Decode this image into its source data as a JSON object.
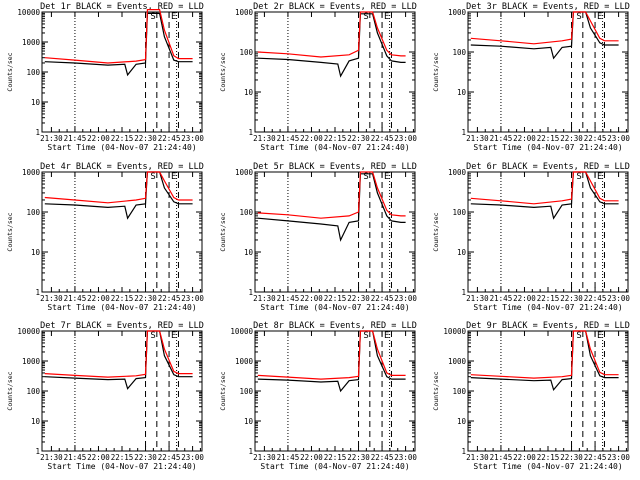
{
  "chart_data": [
    {
      "type": "line",
      "title": "Det 1r BLACK = Events, RED = LLD",
      "xlabel": "Start Time (04-Nov-07 21:24:40)",
      "ylabel": "Counts/sec",
      "ylog": true,
      "ylim": [
        1,
        10000
      ],
      "xlim": [
        21.4,
        23.1
      ],
      "xticks": [
        "21:30",
        "21:45",
        "22:00",
        "22:15",
        "22:30",
        "22:45",
        "23:00"
      ],
      "yticks": [
        "1",
        "10",
        "100",
        "1000",
        "10000"
      ],
      "vlines_dotted": [
        21.75,
        22.83
      ],
      "vlines_dashed": [
        22.5,
        22.62,
        22.75,
        22.85
      ],
      "annotations": [
        "S",
        "E"
      ],
      "series": [
        {
          "color": "#000000",
          "x": [
            21.43,
            21.75,
            22.1,
            22.28,
            22.31,
            22.4,
            22.5,
            22.52,
            22.6,
            22.65,
            22.7,
            22.8,
            22.85,
            22.95,
            23.0
          ],
          "y": [
            220,
            200,
            170,
            180,
            80,
            180,
            200,
            9000,
            9000,
            9000,
            1500,
            250,
            220,
            220,
            220
          ]
        },
        {
          "color": "#ff0000",
          "x": [
            21.43,
            21.75,
            22.1,
            22.4,
            22.5,
            22.52,
            22.6,
            22.65,
            22.7,
            22.8,
            22.85,
            22.95,
            23.0
          ],
          "y": [
            300,
            250,
            200,
            230,
            260,
            12000,
            12000,
            12000,
            2500,
            350,
            280,
            280,
            280
          ]
        }
      ]
    },
    {
      "type": "line",
      "title": "Det 2r BLACK = Events, RED = LLD",
      "xlabel": "Start Time (04-Nov-07 21:24:40)",
      "ylabel": "Counts/sec",
      "ylog": true,
      "ylim": [
        1,
        1000
      ],
      "xlim": [
        21.4,
        23.1
      ],
      "xticks": [
        "21:30",
        "21:45",
        "22:00",
        "22:15",
        "22:30",
        "22:45",
        "23:00"
      ],
      "yticks": [
        "1",
        "10",
        "100",
        "1000"
      ],
      "vlines_dotted": [
        21.75,
        22.83
      ],
      "vlines_dashed": [
        22.5,
        22.62,
        22.75,
        22.85
      ],
      "annotations": [
        "S",
        "E"
      ],
      "series": [
        {
          "color": "#000000",
          "x": [
            21.43,
            21.75,
            22.1,
            22.28,
            22.31,
            22.4,
            22.5,
            22.52,
            22.6,
            22.65,
            22.7,
            22.8,
            22.85,
            22.95,
            23.0
          ],
          "y": [
            70,
            65,
            55,
            50,
            25,
            60,
            70,
            900,
            900,
            900,
            300,
            80,
            60,
            55,
            55
          ]
        },
        {
          "color": "#ff0000",
          "x": [
            21.43,
            21.75,
            22.1,
            22.4,
            22.5,
            22.52,
            22.6,
            22.65,
            22.7,
            22.8,
            22.85,
            22.95,
            23.0
          ],
          "y": [
            100,
            90,
            75,
            85,
            110,
            1000,
            1000,
            1000,
            400,
            110,
            85,
            80,
            80
          ]
        }
      ]
    },
    {
      "type": "line",
      "title": "Det 3r BLACK = Events, RED = LLD",
      "xlabel": "Start Time (04-Nov-07 21:24:40)",
      "ylabel": "Counts/sec",
      "ylog": true,
      "ylim": [
        1,
        1000
      ],
      "xlim": [
        21.4,
        23.1
      ],
      "xticks": [
        "21:30",
        "21:45",
        "22:00",
        "22:15",
        "22:30",
        "22:45",
        "23:00"
      ],
      "yticks": [
        "1",
        "10",
        "100",
        "1000"
      ],
      "vlines_dotted": [
        21.75,
        22.83
      ],
      "vlines_dashed": [
        22.5,
        22.62,
        22.75,
        22.85
      ],
      "annotations": [
        "S",
        "E"
      ],
      "series": [
        {
          "color": "#000000",
          "x": [
            21.43,
            21.75,
            22.1,
            22.28,
            22.31,
            22.4,
            22.5,
            22.52,
            22.6,
            22.65,
            22.7,
            22.8,
            22.85,
            22.95,
            23.0
          ],
          "y": [
            150,
            140,
            120,
            130,
            70,
            130,
            140,
            1000,
            1000,
            1000,
            400,
            170,
            150,
            150,
            150
          ]
        },
        {
          "color": "#ff0000",
          "x": [
            21.43,
            21.75,
            22.1,
            22.4,
            22.5,
            22.52,
            22.6,
            22.65,
            22.7,
            22.8,
            22.85,
            22.95,
            23.0
          ],
          "y": [
            220,
            190,
            160,
            190,
            210,
            1000,
            1000,
            1000,
            600,
            220,
            190,
            190,
            190
          ]
        }
      ]
    },
    {
      "type": "line",
      "title": "Det 4r BLACK = Events, RED = LLD",
      "xlabel": "Start Time (04-Nov-07 21:24:40)",
      "ylabel": "Counts/sec",
      "ylog": true,
      "ylim": [
        1,
        1000
      ],
      "xlim": [
        21.4,
        23.1
      ],
      "xticks": [
        "21:30",
        "21:45",
        "22:00",
        "22:15",
        "22:30",
        "22:45",
        "23:00"
      ],
      "yticks": [
        "1",
        "10",
        "100",
        "1000"
      ],
      "vlines_dotted": [
        21.75,
        22.83
      ],
      "vlines_dashed": [
        22.5,
        22.62,
        22.75,
        22.85
      ],
      "annotations": [
        "S",
        "E"
      ],
      "series": [
        {
          "color": "#000000",
          "x": [
            21.43,
            21.75,
            22.1,
            22.28,
            22.31,
            22.4,
            22.5,
            22.52,
            22.6,
            22.65,
            22.7,
            22.8,
            22.85,
            22.95,
            23.0
          ],
          "y": [
            160,
            150,
            130,
            140,
            70,
            150,
            160,
            1000,
            1000,
            1000,
            400,
            180,
            160,
            160,
            160
          ]
        },
        {
          "color": "#ff0000",
          "x": [
            21.43,
            21.75,
            22.1,
            22.4,
            22.5,
            22.52,
            22.6,
            22.65,
            22.7,
            22.8,
            22.85,
            22.95,
            23.0
          ],
          "y": [
            230,
            200,
            170,
            200,
            220,
            1000,
            1000,
            1000,
            600,
            230,
            200,
            200,
            200
          ]
        }
      ]
    },
    {
      "type": "line",
      "title": "Det 5r BLACK = Events, RED = LLD",
      "xlabel": "Start Time (04-Nov-07 21:24:40)",
      "ylabel": "Counts/sec",
      "ylog": true,
      "ylim": [
        1,
        1000
      ],
      "xlim": [
        21.4,
        23.1
      ],
      "xticks": [
        "21:30",
        "21:45",
        "22:00",
        "22:15",
        "22:30",
        "22:45",
        "23:00"
      ],
      "yticks": [
        "1",
        "10",
        "100",
        "1000"
      ],
      "vlines_dotted": [
        21.75,
        22.83
      ],
      "vlines_dashed": [
        22.5,
        22.62,
        22.75,
        22.85
      ],
      "annotations": [
        "S",
        "E"
      ],
      "series": [
        {
          "color": "#000000",
          "x": [
            21.43,
            21.75,
            22.1,
            22.28,
            22.31,
            22.4,
            22.5,
            22.52,
            22.6,
            22.65,
            22.7,
            22.8,
            22.85,
            22.95,
            23.0
          ],
          "y": [
            70,
            60,
            50,
            45,
            20,
            55,
            60,
            900,
            900,
            900,
            300,
            80,
            60,
            55,
            55
          ]
        },
        {
          "color": "#ff0000",
          "x": [
            21.43,
            21.75,
            22.1,
            22.4,
            22.5,
            22.52,
            22.6,
            22.65,
            22.7,
            22.8,
            22.85,
            22.95,
            23.0
          ],
          "y": [
            95,
            85,
            70,
            80,
            100,
            1000,
            1000,
            1000,
            400,
            110,
            85,
            80,
            80
          ]
        }
      ]
    },
    {
      "type": "line",
      "title": "Det 6r BLACK = Events, RED = LLD",
      "xlabel": "Start Time (04-Nov-07 21:24:40)",
      "ylabel": "Counts/sec",
      "ylog": true,
      "ylim": [
        1,
        1000
      ],
      "xlim": [
        21.4,
        23.1
      ],
      "xticks": [
        "21:30",
        "21:45",
        "22:00",
        "22:15",
        "22:30",
        "22:45",
        "23:00"
      ],
      "yticks": [
        "1",
        "10",
        "100",
        "1000"
      ],
      "vlines_dotted": [
        21.75,
        22.83
      ],
      "vlines_dashed": [
        22.5,
        22.62,
        22.75,
        22.85
      ],
      "annotations": [
        "S",
        "E"
      ],
      "series": [
        {
          "color": "#000000",
          "x": [
            21.43,
            21.75,
            22.1,
            22.28,
            22.31,
            22.4,
            22.5,
            22.52,
            22.6,
            22.65,
            22.7,
            22.8,
            22.85,
            22.95,
            23.0
          ],
          "y": [
            160,
            150,
            130,
            140,
            70,
            150,
            160,
            1000,
            1000,
            1000,
            400,
            180,
            160,
            160,
            160
          ]
        },
        {
          "color": "#ff0000",
          "x": [
            21.43,
            21.75,
            22.1,
            22.4,
            22.5,
            22.52,
            22.6,
            22.65,
            22.7,
            22.8,
            22.85,
            22.95,
            23.0
          ],
          "y": [
            220,
            190,
            160,
            190,
            210,
            1000,
            1000,
            1000,
            600,
            220,
            190,
            190,
            190
          ]
        }
      ]
    },
    {
      "type": "line",
      "title": "Det 7r BLACK = Events, RED = LLD",
      "xlabel": "Start Time (04-Nov-07 21:24:40)",
      "ylabel": "Counts/sec",
      "ylog": true,
      "ylim": [
        1,
        10000
      ],
      "xlim": [
        21.4,
        23.1
      ],
      "xticks": [
        "21:30",
        "21:45",
        "22:00",
        "22:15",
        "22:30",
        "22:45",
        "23:00"
      ],
      "yticks": [
        "1",
        "10",
        "100",
        "1000",
        "10000"
      ],
      "vlines_dotted": [
        21.75,
        22.83
      ],
      "vlines_dashed": [
        22.5,
        22.62,
        22.75,
        22.85
      ],
      "annotations": [
        "S",
        "E"
      ],
      "series": [
        {
          "color": "#000000",
          "x": [
            21.43,
            21.75,
            22.1,
            22.28,
            22.31,
            22.4,
            22.5,
            22.52,
            22.6,
            22.65,
            22.7,
            22.8,
            22.85,
            22.95,
            23.0
          ],
          "y": [
            300,
            270,
            240,
            250,
            120,
            260,
            280,
            10000,
            10000,
            10000,
            1500,
            350,
            300,
            300,
            300
          ]
        },
        {
          "color": "#ff0000",
          "x": [
            21.43,
            21.75,
            22.1,
            22.4,
            22.5,
            22.52,
            22.6,
            22.65,
            22.7,
            22.8,
            22.85,
            22.95,
            23.0
          ],
          "y": [
            380,
            330,
            290,
            320,
            360,
            10000,
            10000,
            10000,
            2500,
            450,
            380,
            380,
            380
          ]
        }
      ]
    },
    {
      "type": "line",
      "title": "Det 8r BLACK = Events, RED = LLD",
      "xlabel": "Start Time (04-Nov-07 21:24:40)",
      "ylabel": "Counts/sec",
      "ylog": true,
      "ylim": [
        1,
        10000
      ],
      "xlim": [
        21.4,
        23.1
      ],
      "xticks": [
        "21:30",
        "21:45",
        "22:00",
        "22:15",
        "22:30",
        "22:45",
        "23:00"
      ],
      "yticks": [
        "1",
        "10",
        "100",
        "1000",
        "10000"
      ],
      "vlines_dotted": [
        21.75,
        22.83
      ],
      "vlines_dashed": [
        22.5,
        22.62,
        22.75,
        22.85
      ],
      "annotations": [
        "S",
        "E"
      ],
      "series": [
        {
          "color": "#000000",
          "x": [
            21.43,
            21.75,
            22.1,
            22.28,
            22.31,
            22.4,
            22.5,
            22.52,
            22.6,
            22.65,
            22.7,
            22.8,
            22.85,
            22.95,
            23.0
          ],
          "y": [
            250,
            230,
            200,
            210,
            100,
            220,
            240,
            10000,
            10000,
            10000,
            1500,
            300,
            250,
            250,
            250
          ]
        },
        {
          "color": "#ff0000",
          "x": [
            21.43,
            21.75,
            22.1,
            22.4,
            22.5,
            22.52,
            22.6,
            22.65,
            22.7,
            22.8,
            22.85,
            22.95,
            23.0
          ],
          "y": [
            330,
            290,
            250,
            280,
            310,
            10000,
            10000,
            10000,
            2500,
            400,
            330,
            330,
            330
          ]
        }
      ]
    },
    {
      "type": "line",
      "title": "Det 9r BLACK = Events, RED = LLD",
      "xlabel": "Start Time (04-Nov-07 21:24:40)",
      "ylabel": "Counts/sec",
      "ylog": true,
      "ylim": [
        1,
        10000
      ],
      "xlim": [
        21.4,
        23.1
      ],
      "xticks": [
        "21:30",
        "21:45",
        "22:00",
        "22:15",
        "22:30",
        "22:45",
        "23:00"
      ],
      "yticks": [
        "1",
        "10",
        "100",
        "1000",
        "10000"
      ],
      "vlines_dotted": [
        21.75,
        22.83
      ],
      "vlines_dashed": [
        22.5,
        22.62,
        22.75,
        22.85
      ],
      "annotations": [
        "S",
        "E"
      ],
      "series": [
        {
          "color": "#000000",
          "x": [
            21.43,
            21.75,
            22.1,
            22.28,
            22.31,
            22.4,
            22.5,
            22.52,
            22.6,
            22.65,
            22.7,
            22.8,
            22.85,
            22.95,
            23.0
          ],
          "y": [
            280,
            250,
            220,
            230,
            110,
            240,
            260,
            10000,
            10000,
            10000,
            1500,
            320,
            280,
            280,
            280
          ]
        },
        {
          "color": "#ff0000",
          "x": [
            21.43,
            21.75,
            22.1,
            22.4,
            22.5,
            22.52,
            22.6,
            22.65,
            22.7,
            22.8,
            22.85,
            22.95,
            23.0
          ],
          "y": [
            350,
            310,
            270,
            300,
            330,
            10000,
            10000,
            10000,
            2500,
            420,
            350,
            350,
            350
          ]
        }
      ]
    }
  ]
}
